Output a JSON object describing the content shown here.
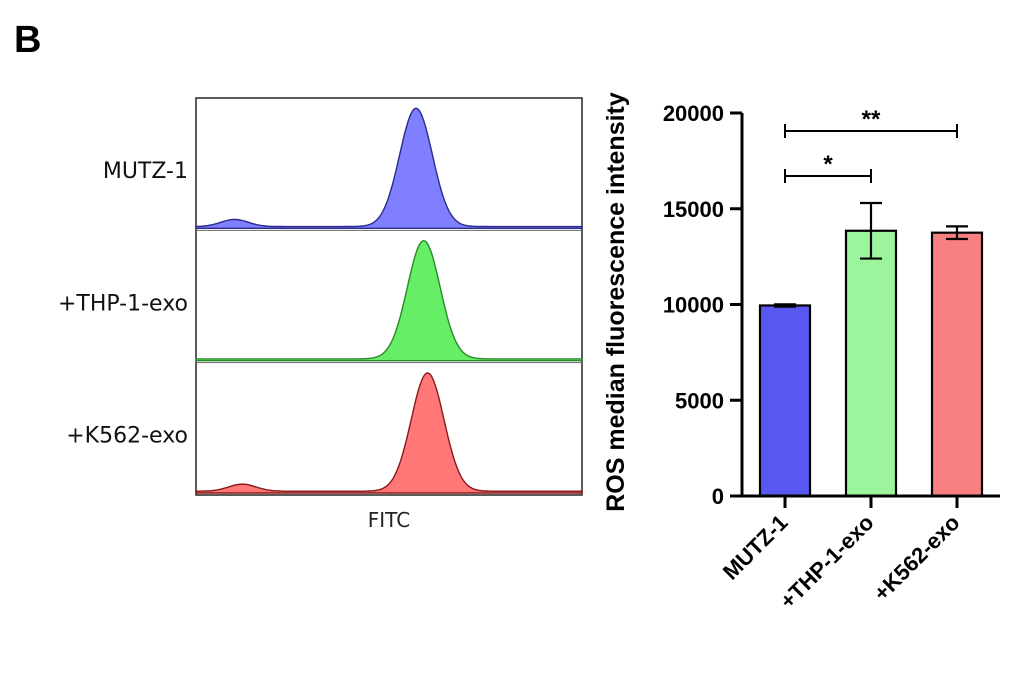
{
  "panel_label": "B",
  "chart_data": [
    {
      "type": "area",
      "subtype": "stacked flow cytometry histograms",
      "xlabel": "FITC",
      "series": [
        {
          "name": "MUTZ-1",
          "color": "#7f7fff",
          "line_color": "#2b2b8f",
          "peak_position": 0.57,
          "minor_bump_position": 0.1
        },
        {
          "name": "+THP-1-exo",
          "color": "#66ee66",
          "line_color": "#2a8a2a",
          "peak_position": 0.59
        },
        {
          "name": "+K562-exo",
          "color": "#ff7777",
          "line_color": "#8a1a1a",
          "peak_position": 0.6,
          "minor_bump_position": 0.12
        }
      ]
    },
    {
      "type": "bar",
      "categories": [
        "MUTZ-1",
        "+THP-1-exo",
        "+K562-exo"
      ],
      "values": [
        9950,
        13850,
        13750
      ],
      "errors": [
        60,
        1450,
        330
      ],
      "colors": [
        "#5858f0",
        "#9cf59c",
        "#f98080"
      ],
      "ylabel": "ROS median fluorescence intensity",
      "yticks": [
        "0",
        "5000",
        "10000",
        "15000",
        "20000"
      ],
      "ylim": [
        0,
        20000
      ],
      "significance": [
        {
          "from": 0,
          "to": 1,
          "label": "*"
        },
        {
          "from": 0,
          "to": 2,
          "label": "**"
        }
      ]
    }
  ]
}
